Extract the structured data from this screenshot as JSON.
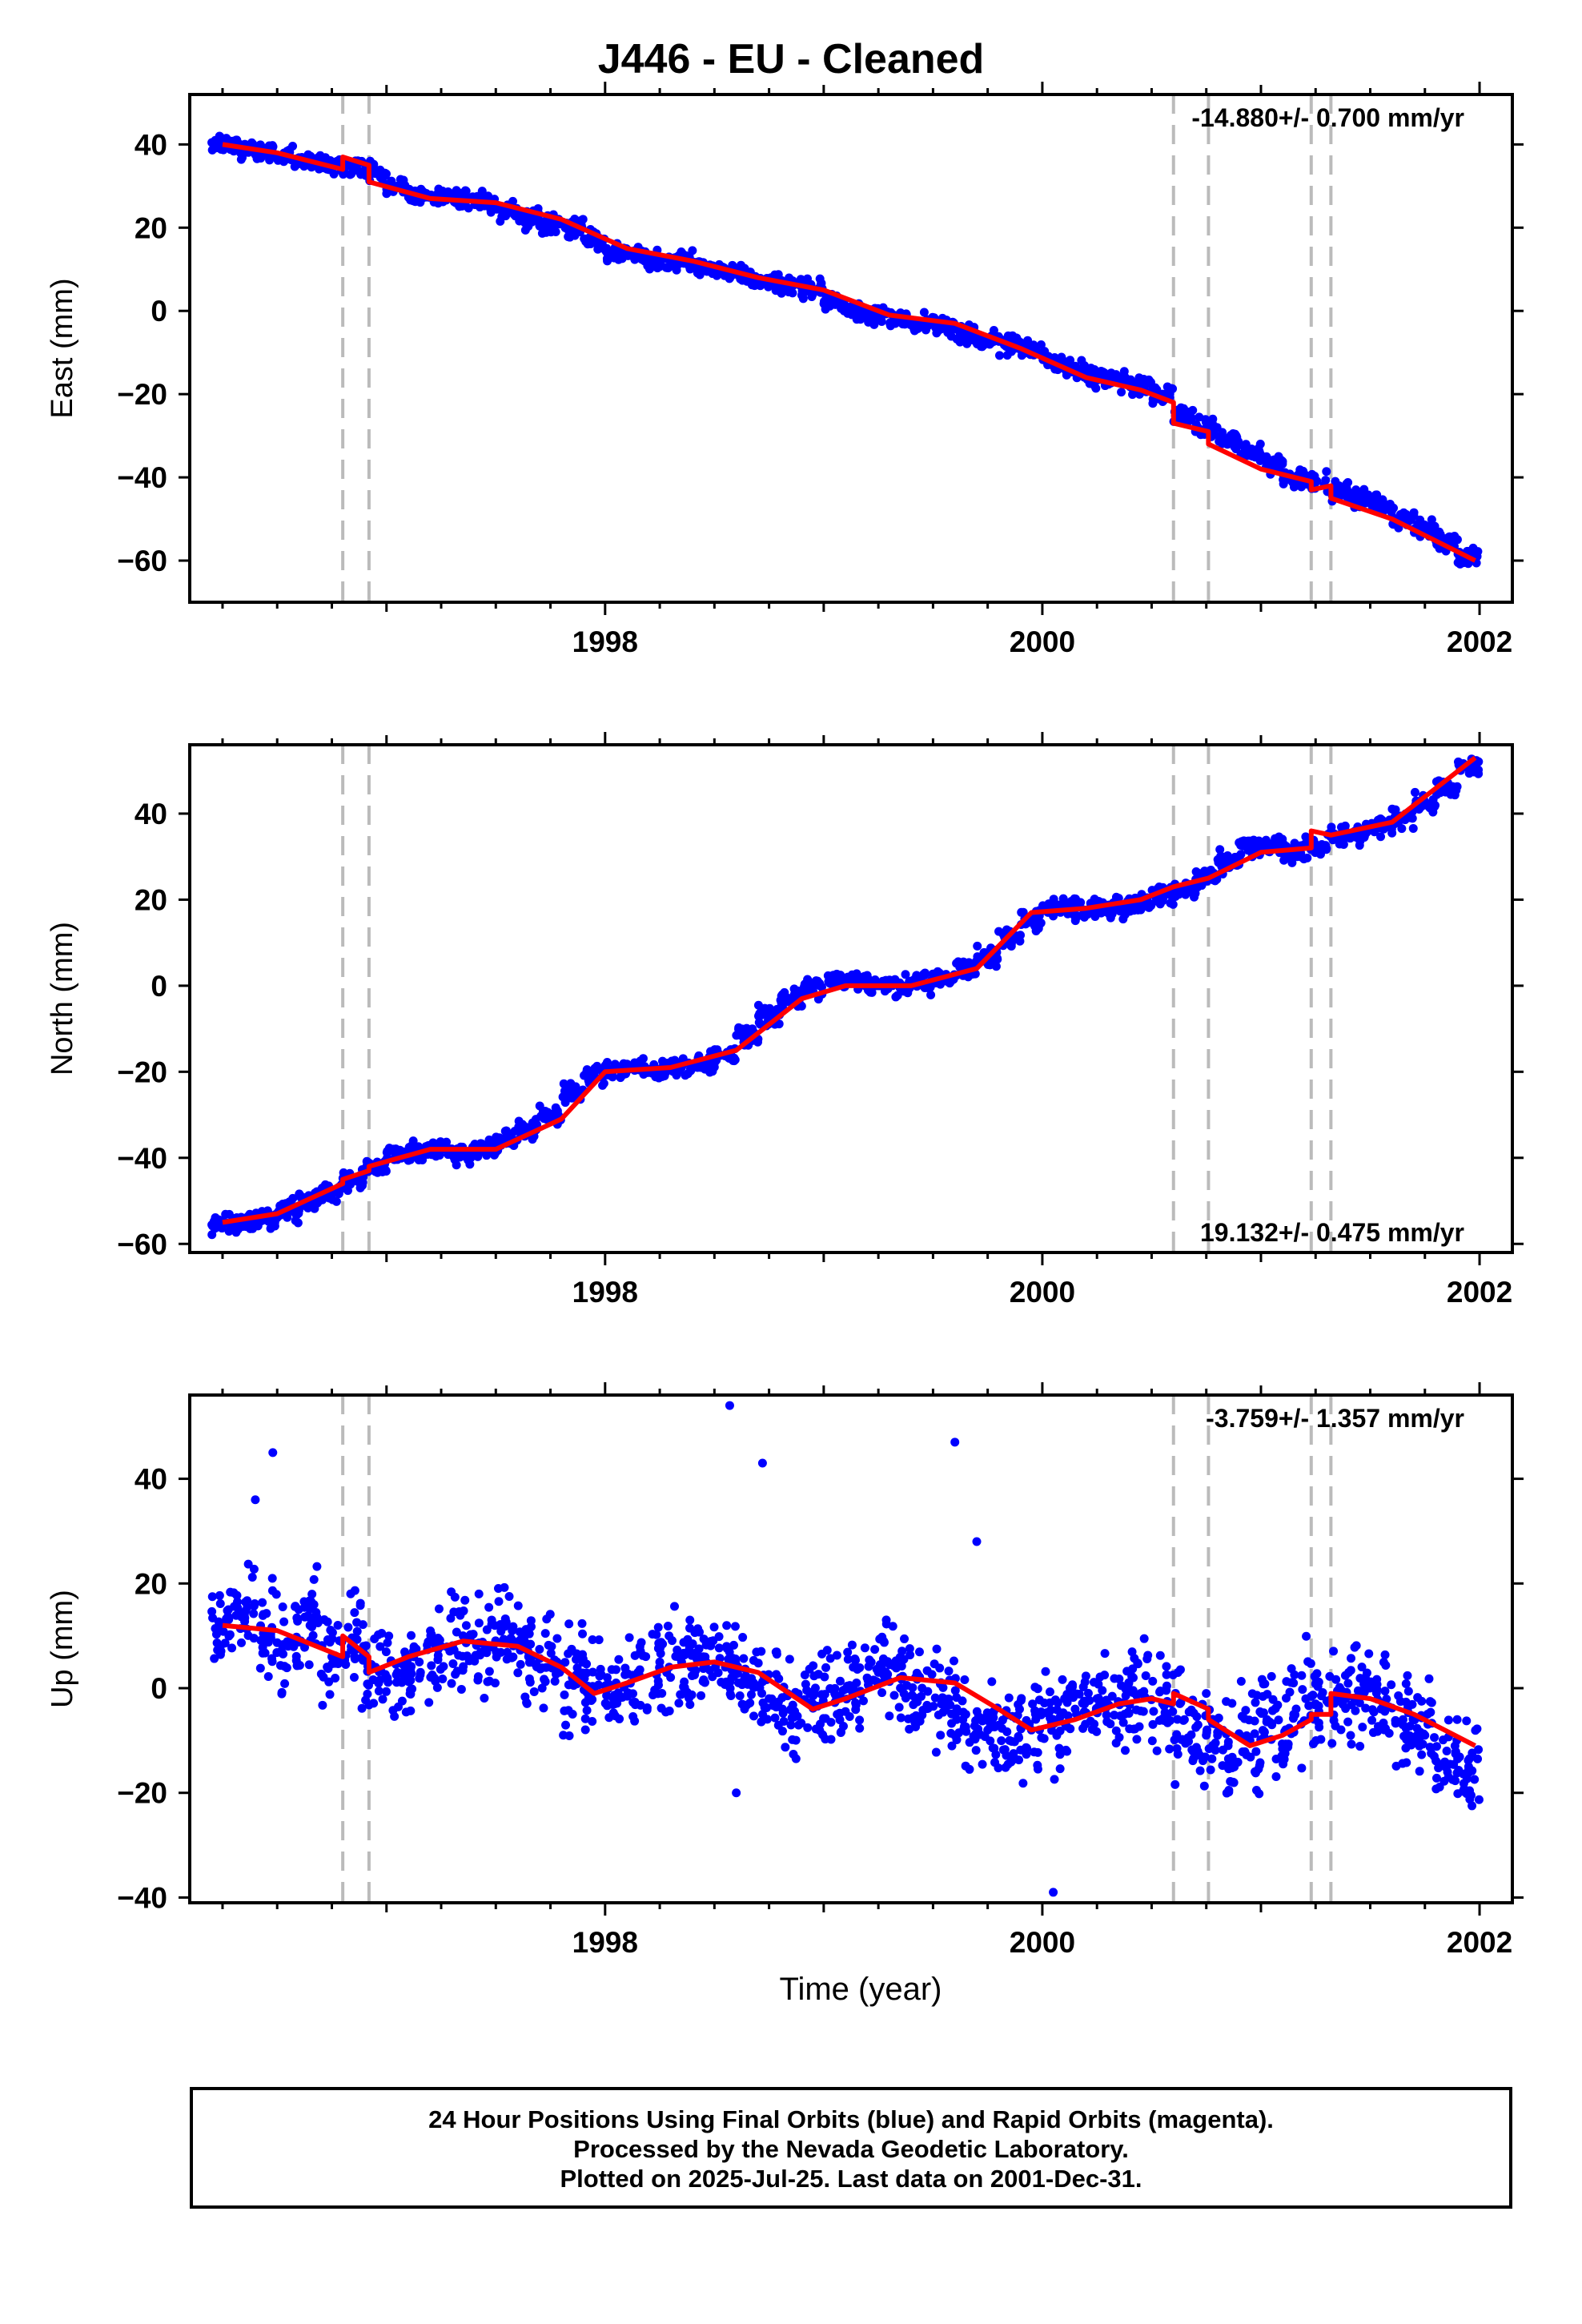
{
  "title": "J446  - EU - Cleaned",
  "footer": {
    "line1": "24 Hour Positions Using Final Orbits (blue) and Rapid Orbits (magenta).",
    "line2": "Processed by the Nevada Geodetic Laboratory.",
    "line3": "Plotted on 2025-Jul-25. Last data on 2001-Dec-31."
  },
  "colors": {
    "points": "#0000ff",
    "model": "#ff0000",
    "steps": "#bbbbbb",
    "frame": "#000000"
  },
  "chart_data": [
    {
      "type": "scatter",
      "title": "J446  - EU - Cleaned",
      "xlabel": "",
      "ylabel": "East (mm)",
      "rate_label": "-14.880+/- 0.700 mm/yr",
      "rate_position": "top-right",
      "xlim": [
        1996.1,
        2002.15
      ],
      "ylim": [
        -70,
        52
      ],
      "xticks": [
        1998,
        2000,
        2002
      ],
      "yticks": [
        -60,
        -40,
        -20,
        0,
        20,
        40
      ],
      "steps": [
        1996.8,
        1996.92,
        2000.6,
        2000.76,
        2001.23,
        2001.32
      ],
      "series": [
        {
          "type": "scatter",
          "x": [
            1996.25,
            1996.35,
            1996.45,
            1996.55,
            1996.65,
            1996.75,
            1996.85,
            1996.95,
            1997.05,
            1997.15,
            1997.25,
            1997.35,
            1997.45,
            1997.55,
            1997.65,
            1997.75,
            1997.85,
            1997.95,
            1998.05,
            1998.15,
            1998.25,
            1998.35,
            1998.45,
            1998.55,
            1998.65,
            1998.75,
            1998.85,
            1998.95,
            1999.05,
            1999.15,
            1999.25,
            1999.35,
            1999.45,
            1999.55,
            1999.65,
            1999.75,
            1999.85,
            1999.95,
            2000.05,
            2000.15,
            2000.25,
            2000.35,
            2000.45,
            2000.55,
            2000.65,
            2000.75,
            2000.85,
            2000.95,
            2001.05,
            2001.15,
            2001.25,
            2001.35,
            2001.45,
            2001.55,
            2001.65,
            2001.75,
            2001.85,
            2001.95
          ],
          "y": [
            40,
            39,
            38,
            37,
            36,
            35,
            35,
            33,
            30,
            28,
            27,
            27,
            26,
            24,
            22,
            21,
            20,
            17,
            14,
            13,
            12,
            12,
            11,
            9,
            8,
            7,
            6,
            5,
            2,
            0,
            -1,
            -2,
            -3,
            -4,
            -6,
            -7,
            -8,
            -9,
            -12,
            -14,
            -16,
            -17,
            -18,
            -20,
            -25,
            -28,
            -31,
            -34,
            -37,
            -40,
            -41,
            -43,
            -45,
            -47,
            -50,
            -52,
            -55,
            -59
          ]
        },
        {
          "type": "line",
          "x": [
            1996.25,
            1996.5,
            1996.8,
            1996.8,
            1996.92,
            1996.92,
            1997.2,
            1997.5,
            1997.8,
            1998.1,
            1998.4,
            1998.7,
            1999.0,
            1999.3,
            1999.6,
            1999.9,
            2000.2,
            2000.45,
            2000.6,
            2000.6,
            2000.76,
            2000.76,
            2001.0,
            2001.23,
            2001.23,
            2001.32,
            2001.32,
            2001.6,
            2001.98
          ],
          "y": [
            40,
            38,
            34,
            37,
            35,
            31,
            27,
            26,
            22,
            15,
            12,
            8,
            5,
            -1,
            -3,
            -9,
            -16,
            -19,
            -22,
            -27,
            -29,
            -32,
            -38,
            -41,
            -43,
            -42,
            -45,
            -50,
            -60
          ]
        }
      ]
    },
    {
      "type": "scatter",
      "xlabel": "",
      "ylabel": "North (mm)",
      "rate_label": "19.132+/- 0.475 mm/yr",
      "rate_position": "bottom-right",
      "xlim": [
        1996.1,
        2002.15
      ],
      "ylim": [
        -62,
        56
      ],
      "xticks": [
        1998,
        2000,
        2002
      ],
      "yticks": [
        -60,
        -40,
        -20,
        0,
        20,
        40
      ],
      "steps": [
        1996.8,
        1996.92,
        2000.6,
        2000.76,
        2001.23,
        2001.32
      ],
      "series": [
        {
          "type": "scatter",
          "x": [
            1996.25,
            1996.35,
            1996.45,
            1996.55,
            1996.65,
            1996.75,
            1996.85,
            1996.95,
            1997.05,
            1997.15,
            1997.25,
            1997.35,
            1997.45,
            1997.55,
            1997.65,
            1997.75,
            1997.85,
            1997.95,
            1998.05,
            1998.15,
            1998.25,
            1998.35,
            1998.45,
            1998.55,
            1998.65,
            1998.75,
            1998.85,
            1998.95,
            1999.05,
            1999.15,
            1999.25,
            1999.35,
            1999.45,
            1999.55,
            1999.65,
            1999.75,
            1999.85,
            1999.95,
            2000.05,
            2000.15,
            2000.25,
            2000.35,
            2000.45,
            2000.55,
            2000.65,
            2000.75,
            2000.85,
            2000.95,
            2001.05,
            2001.15,
            2001.25,
            2001.35,
            2001.45,
            2001.55,
            2001.65,
            2001.75,
            2001.85,
            2001.95
          ],
          "y": [
            -55,
            -55,
            -54,
            -52,
            -50,
            -48,
            -45,
            -42,
            -39,
            -38,
            -38,
            -39,
            -38,
            -36,
            -33,
            -30,
            -25,
            -21,
            -19,
            -19,
            -20,
            -19,
            -18,
            -16,
            -12,
            -7,
            -3,
            0,
            1,
            1,
            0,
            0,
            1,
            2,
            4,
            7,
            11,
            15,
            18,
            18,
            18,
            18,
            19,
            21,
            22,
            25,
            29,
            32,
            33,
            31,
            32,
            35,
            35,
            37,
            39,
            42,
            46,
            51
          ]
        },
        {
          "type": "line",
          "x": [
            1996.25,
            1996.5,
            1996.8,
            1996.8,
            1996.92,
            1996.92,
            1997.2,
            1997.5,
            1997.8,
            1998.0,
            1998.3,
            1998.6,
            1998.9,
            1999.1,
            1999.4,
            1999.7,
            1999.95,
            2000.2,
            2000.45,
            2000.6,
            2000.6,
            2000.76,
            2000.76,
            2001.0,
            2001.23,
            2001.23,
            2001.32,
            2001.32,
            2001.6,
            2001.98
          ],
          "y": [
            -55,
            -53,
            -46,
            -45,
            -43,
            -42,
            -38,
            -38,
            -31,
            -20,
            -19,
            -15,
            -3,
            0,
            0,
            4,
            17,
            18,
            20,
            23,
            23,
            25,
            25,
            31,
            32,
            36,
            35,
            35,
            38,
            53
          ]
        }
      ]
    },
    {
      "type": "scatter",
      "xlabel": "Time (year)",
      "ylabel": "Up (mm)",
      "rate_label": "-3.759+/- 1.357 mm/yr",
      "rate_position": "top-right",
      "xlim": [
        1996.1,
        2002.15
      ],
      "ylim": [
        -41,
        56
      ],
      "xticks": [
        1998,
        2000,
        2002
      ],
      "yticks": [
        -40,
        -20,
        0,
        20,
        40
      ],
      "steps": [
        1996.8,
        1996.92,
        2000.6,
        2000.76,
        2001.23,
        2001.32
      ],
      "series": [
        {
          "type": "scatter",
          "x": [
            1996.25,
            1996.35,
            1996.45,
            1996.55,
            1996.65,
            1996.75,
            1996.85,
            1996.95,
            1997.05,
            1997.15,
            1997.25,
            1997.35,
            1997.45,
            1997.55,
            1997.65,
            1997.75,
            1997.85,
            1997.95,
            1998.05,
            1998.15,
            1998.25,
            1998.35,
            1998.45,
            1998.55,
            1998.65,
            1998.75,
            1998.85,
            1998.95,
            1999.05,
            1999.15,
            1999.25,
            1999.35,
            1999.45,
            1999.55,
            1999.65,
            1999.75,
            1999.85,
            1999.95,
            2000.05,
            2000.15,
            2000.25,
            2000.35,
            2000.45,
            2000.55,
            2000.65,
            2000.75,
            2000.85,
            2000.95,
            2001.05,
            2001.15,
            2001.25,
            2001.35,
            2001.45,
            2001.55,
            2001.65,
            2001.75,
            2001.85,
            2001.95,
            1998.57,
            1999.6,
            1998.72,
            1996.48,
            2000.05,
            1996.4,
            1998.6,
            1999.7
          ],
          "y": [
            12,
            14,
            10,
            8,
            12,
            6,
            8,
            4,
            3,
            5,
            8,
            10,
            8,
            9,
            6,
            4,
            2,
            0,
            1,
            3,
            5,
            5,
            6,
            4,
            2,
            -2,
            -4,
            -3,
            -1,
            1,
            3,
            2,
            0,
            -2,
            -5,
            -8,
            -10,
            -8,
            -6,
            -4,
            -2,
            -3,
            -1,
            -3,
            -6,
            -9,
            -11,
            -10,
            -7,
            -5,
            -3,
            -2,
            -1,
            -4,
            -6,
            -9,
            -12,
            -15,
            54,
            47,
            43,
            45,
            -39,
            36,
            -20,
            28
          ]
        },
        {
          "type": "line",
          "x": [
            1996.25,
            1996.5,
            1996.8,
            1996.8,
            1996.92,
            1996.92,
            1997.1,
            1997.35,
            1997.6,
            1997.8,
            1997.95,
            1998.1,
            1998.3,
            1998.5,
            1998.7,
            1998.95,
            1999.1,
            1999.35,
            1999.6,
            1999.8,
            1999.95,
            2000.15,
            2000.35,
            2000.5,
            2000.6,
            2000.6,
            2000.76,
            2000.76,
            2000.95,
            2001.1,
            2001.23,
            2001.23,
            2001.32,
            2001.32,
            2001.5,
            2001.7,
            2001.98
          ],
          "y": [
            12,
            11,
            6,
            10,
            6,
            3,
            6,
            9,
            8,
            4,
            -1,
            1,
            4,
            5,
            3,
            -4,
            -2,
            2,
            1,
            -4,
            -8,
            -6,
            -3,
            -2,
            -3,
            -1,
            -4,
            -6,
            -11,
            -9,
            -6,
            -5,
            -5,
            -1,
            -2,
            -5,
            -11
          ]
        }
      ]
    }
  ]
}
